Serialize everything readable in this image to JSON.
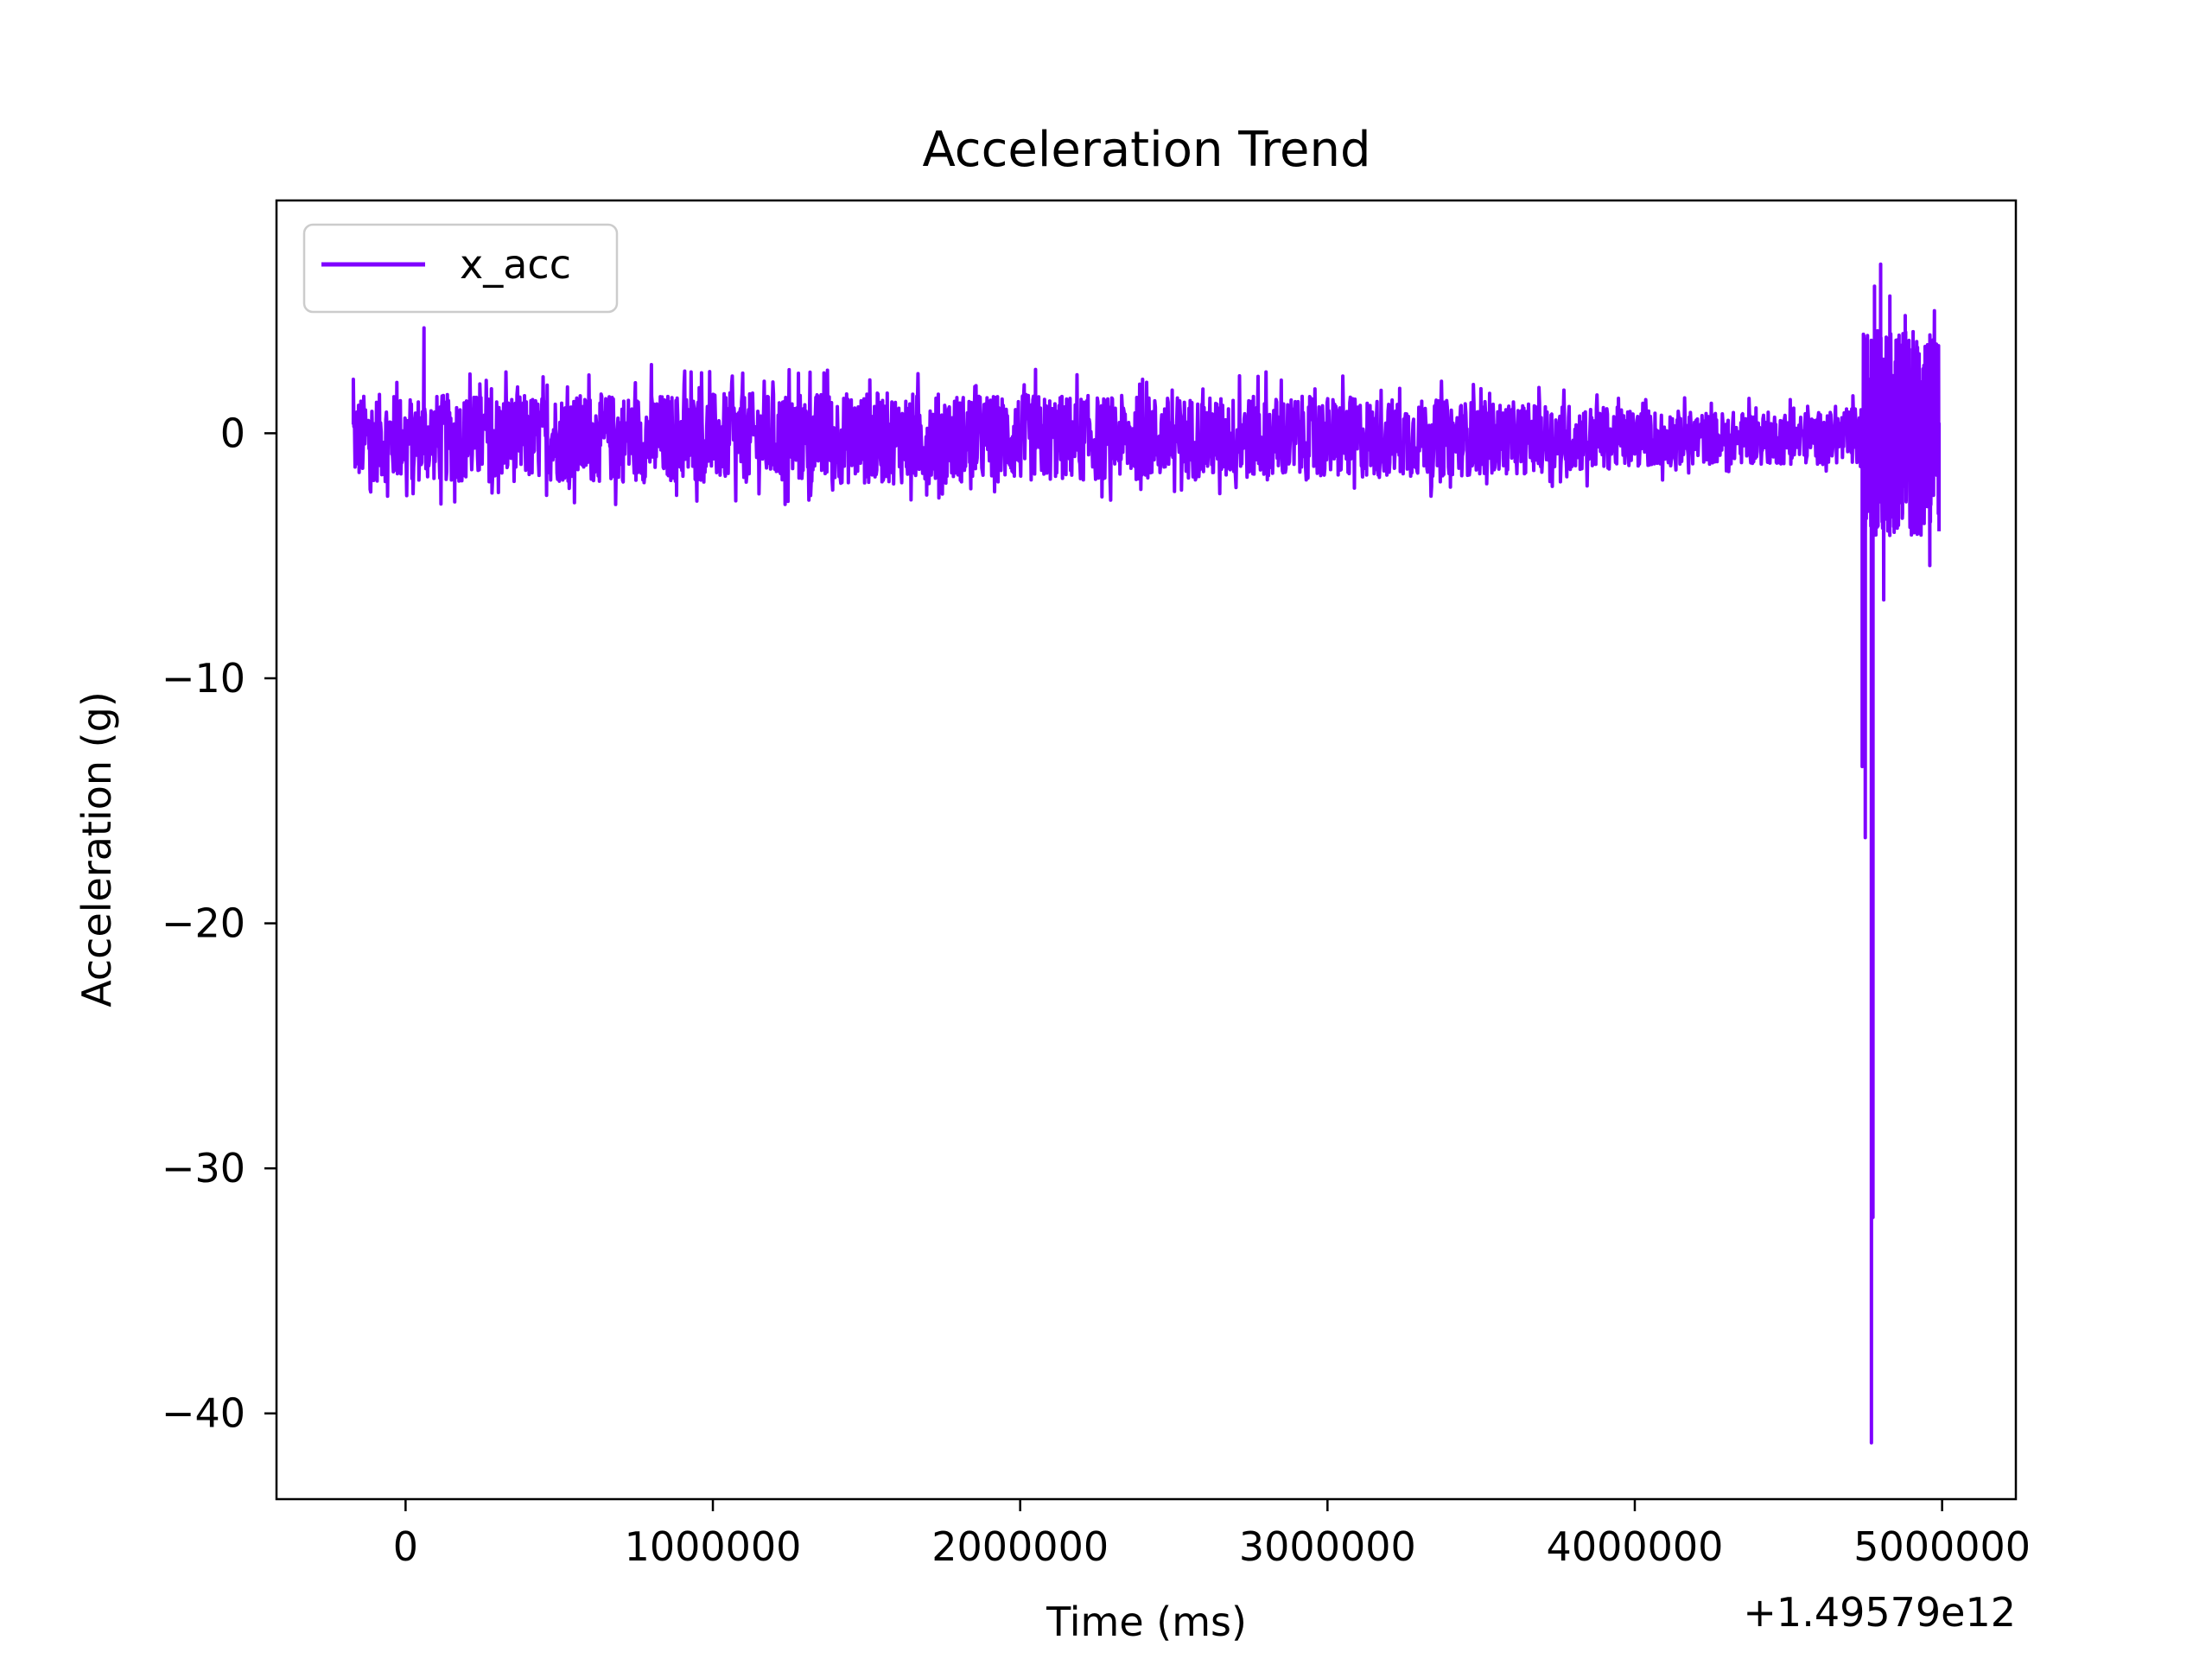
{
  "chart_data": {
    "type": "line",
    "title": "Acceleration Trend",
    "xlabel": "Time (ms)",
    "ylabel": "Acceleration (g)",
    "x_offset_label": "+1.49579e12",
    "xlim": [
      -420000,
      5240000
    ],
    "ylim": [
      -43.5,
      9.5
    ],
    "xticks": [
      0,
      1000000,
      2000000,
      3000000,
      4000000,
      5000000
    ],
    "xtick_labels": [
      "0",
      "1000000",
      "2000000",
      "3000000",
      "4000000",
      "5000000"
    ],
    "yticks": [
      0,
      -10,
      -20,
      -30,
      -40
    ],
    "ytick_labels": [
      "0",
      "−10",
      "−20",
      "−30",
      "−40"
    ],
    "grid": false,
    "legend": {
      "position": "top-left",
      "entries": [
        "x_acc"
      ]
    },
    "series": [
      {
        "name": "x_acc",
        "color": "#7f00ff",
        "x_start": -170000,
        "x_end": 4990000,
        "noise_envelope": [
          [
            -170000,
            2.0
          ],
          [
            500000,
            2.0
          ],
          [
            1500000,
            2.1
          ],
          [
            2500000,
            1.9
          ],
          [
            3000000,
            1.9
          ],
          [
            3700000,
            1.6
          ],
          [
            4200000,
            1.2
          ],
          [
            4650000,
            1.2
          ],
          [
            4740000,
            1.5
          ]
        ],
        "spikes": [
          [
            -170000,
            2.2
          ],
          [
            60000,
            4.3
          ],
          [
            160000,
            -2.8
          ],
          [
            800000,
            2.8
          ],
          [
            2050000,
            2.6
          ],
          [
            2800000,
            2.5
          ],
          [
            3400000,
            -2.2
          ],
          [
            4740000,
            -13.6
          ],
          [
            4750000,
            -16.5
          ],
          [
            4770000,
            -41.2
          ],
          [
            4775000,
            -32.0
          ],
          [
            4780000,
            6.0
          ],
          [
            4800000,
            6.9
          ],
          [
            4810000,
            -6.8
          ],
          [
            4830000,
            5.6
          ],
          [
            4860000,
            4.0
          ],
          [
            4880000,
            4.8
          ],
          [
            4920000,
            3.5
          ],
          [
            4960000,
            -5.4
          ],
          [
            4975000,
            5.0
          ],
          [
            4990000,
            -4.0
          ]
        ]
      }
    ]
  }
}
